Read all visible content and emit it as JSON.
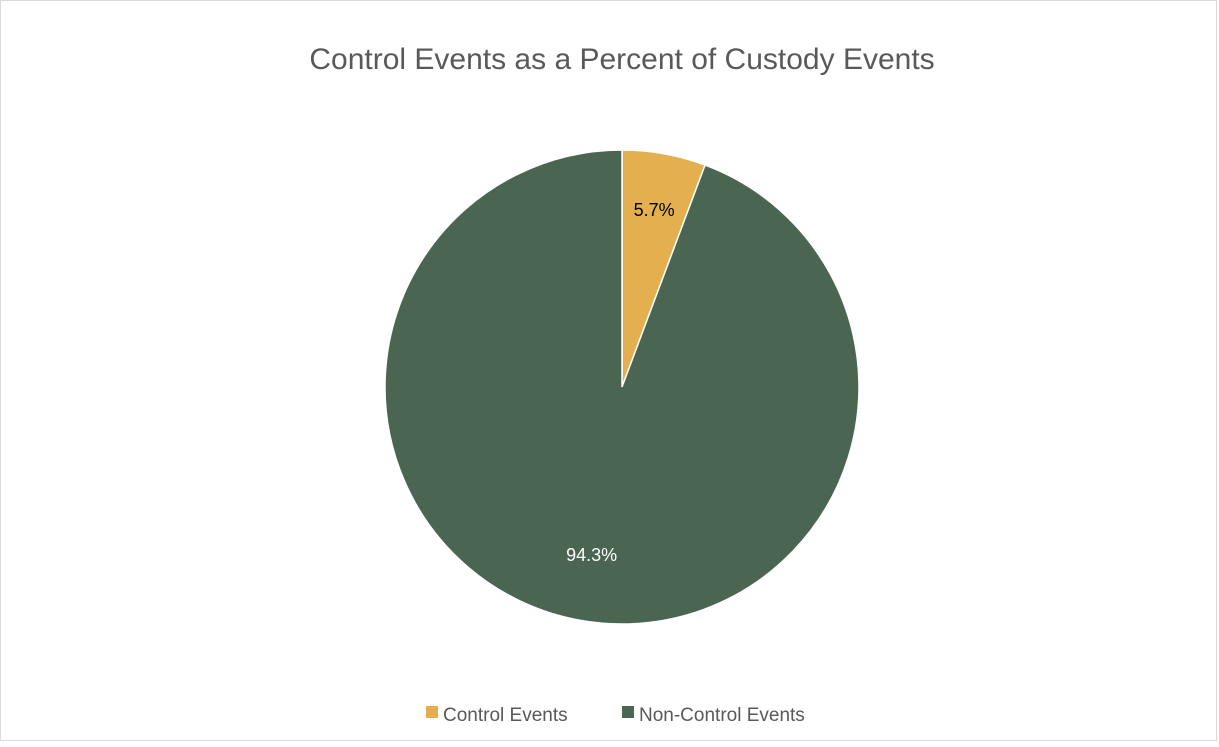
{
  "chart_data": {
    "type": "pie",
    "title": "Control Events as a Percent of Custody Events",
    "slices": [
      {
        "name": "Control Events",
        "value": 5.7,
        "label": "5.7%",
        "color": "#E3AF4F",
        "label_color": "#000000"
      },
      {
        "name": "Non-Control Events",
        "value": 94.3,
        "label": "94.3%",
        "color": "#4A6652",
        "label_color": "#FFFFFF"
      }
    ],
    "start_angle_deg": 0,
    "direction": "clockwise",
    "legend": {
      "placement": "bottom",
      "entries": [
        "Control Events",
        "Non-Control Events"
      ]
    }
  }
}
